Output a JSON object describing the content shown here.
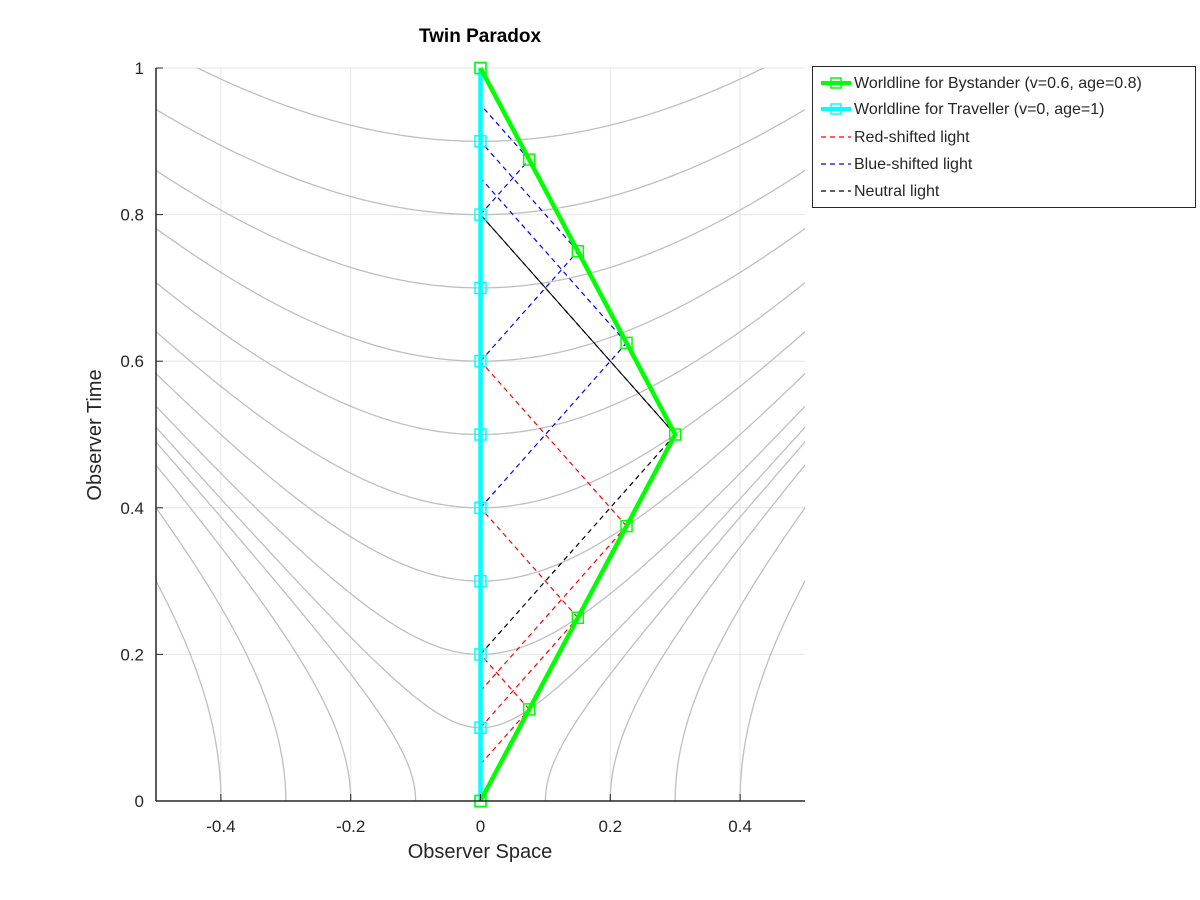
{
  "chart_data": {
    "type": "line",
    "title": "Twin Paradox",
    "xlabel": "Observer Space",
    "ylabel": "Observer Time",
    "xlim": [
      -0.5,
      0.5
    ],
    "ylim": [
      0,
      1
    ],
    "xticks": [
      -0.4,
      -0.2,
      0,
      0.2,
      0.4
    ],
    "xtick_labels": [
      "-0.4",
      "-0.2",
      "0",
      "0.2",
      "0.4"
    ],
    "yticks": [
      0,
      0.2,
      0.4,
      0.6,
      0.8,
      1
    ],
    "ytick_labels": [
      "0",
      "0.2",
      "0.4",
      "0.6",
      "0.8",
      "1"
    ],
    "grid": true,
    "legend_position": "outside-top-right",
    "hyperbola_tau_values": [
      0.1,
      0.2,
      0.3,
      0.4,
      0.5,
      0.6,
      0.7,
      0.8,
      0.9
    ],
    "hyperbola_sigma_values": [
      0.1,
      0.2,
      0.3,
      0.4
    ],
    "hyperbola_color": "#bfbfbf",
    "series": [
      {
        "name": "Worldline for Bystander (v=0.6, age=0.8)",
        "color": "#00ff00",
        "style": "solid-thick-square-markers",
        "x": [
          0,
          0.075,
          0.15,
          0.225,
          0.3,
          0.225,
          0.15,
          0.075,
          0
        ],
        "y": [
          0,
          0.125,
          0.25,
          0.375,
          0.5,
          0.625,
          0.75,
          0.875,
          1
        ]
      },
      {
        "name": "Worldline for Traveller (v=0, age=1)",
        "color": "#00ffff",
        "style": "solid-thick-square-markers",
        "x": [
          0,
          0,
          0,
          0,
          0,
          0,
          0,
          0,
          0,
          0,
          0
        ],
        "y": [
          0,
          0.1,
          0.2,
          0.3,
          0.4,
          0.5,
          0.6,
          0.7,
          0.8,
          0.9,
          1
        ]
      },
      {
        "name": "Red-shifted light",
        "color": "#ff0000",
        "style": "dashed",
        "segments": [
          [
            [
              0,
              0.05
            ],
            [
              0.075,
              0.125
            ]
          ],
          [
            [
              0.075,
              0.125
            ],
            [
              0,
              0.2
            ]
          ],
          [
            [
              0,
              0.1
            ],
            [
              0.15,
              0.25
            ]
          ],
          [
            [
              0.15,
              0.25
            ],
            [
              0,
              0.4
            ]
          ],
          [
            [
              0,
              0.15
            ],
            [
              0.225,
              0.375
            ]
          ],
          [
            [
              0.225,
              0.375
            ],
            [
              0,
              0.6
            ]
          ]
        ]
      },
      {
        "name": "Blue-shifted light",
        "color": "#0000ff",
        "style": "dashed",
        "segments": [
          [
            [
              0,
              0.4
            ],
            [
              0.225,
              0.625
            ]
          ],
          [
            [
              0.225,
              0.625
            ],
            [
              0,
              0.85
            ]
          ],
          [
            [
              0,
              0.6
            ],
            [
              0.15,
              0.75
            ]
          ],
          [
            [
              0.15,
              0.75
            ],
            [
              0,
              0.9
            ]
          ],
          [
            [
              0,
              0.8
            ],
            [
              0.075,
              0.875
            ]
          ],
          [
            [
              0.075,
              0.875
            ],
            [
              0,
              0.95
            ]
          ]
        ]
      },
      {
        "name": "Neutral light",
        "color": "#000000",
        "style": "dashed",
        "segments": [
          [
            [
              0,
              0.2
            ],
            [
              0.3,
              0.5
            ]
          ],
          [
            [
              0.3,
              0.5
            ],
            [
              0,
              0.8
            ]
          ]
        ]
      }
    ]
  }
}
